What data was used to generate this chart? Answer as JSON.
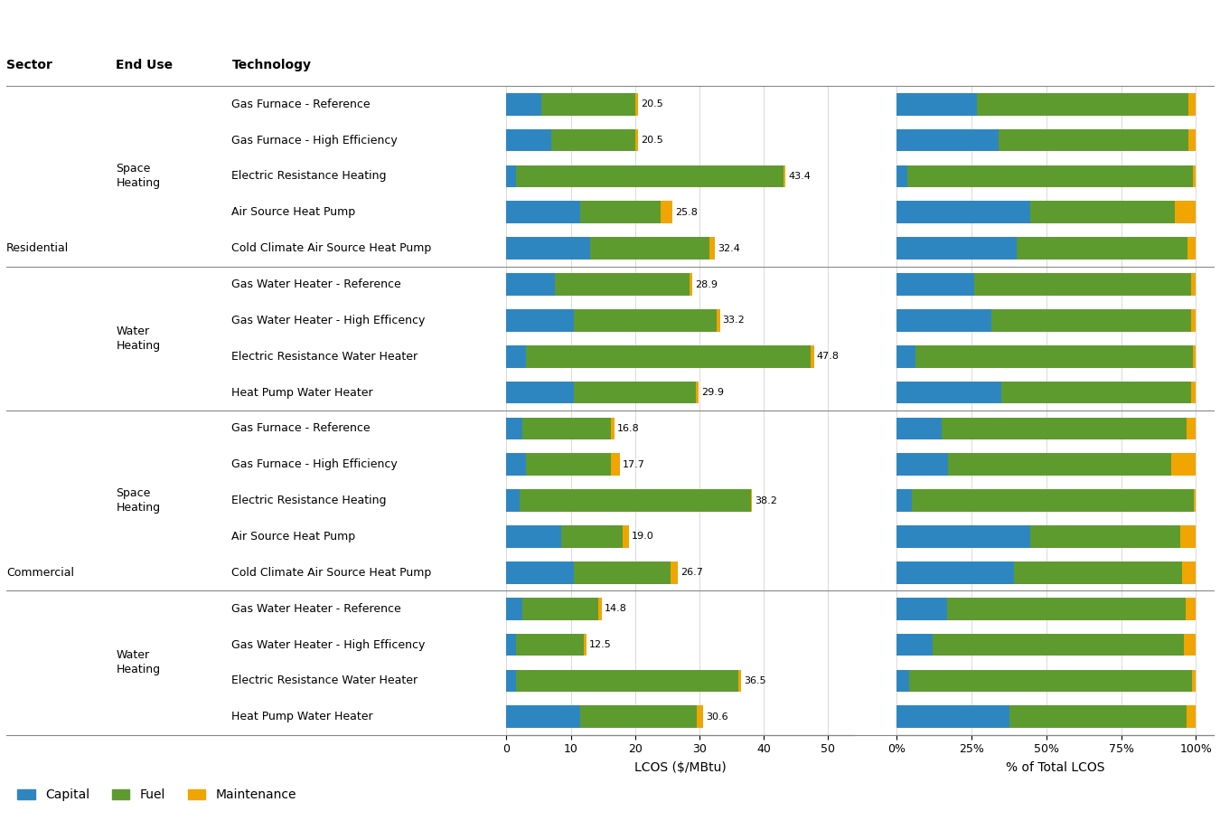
{
  "technologies": [
    "Gas Furnace - Reference",
    "Gas Furnace - High Efficiency",
    "Electric Resistance Heating",
    "Air Source Heat Pump",
    "Cold Climate Air Source Heat Pump",
    "Gas Water Heater - Reference",
    "Gas Water Heater - High Efficency",
    "Electric Resistance Water Heater",
    "Heat Pump Water Heater",
    "Gas Furnace - Reference",
    "Gas Furnace - High Efficiency",
    "Electric Resistance Heating",
    "Air Source Heat Pump",
    "Cold Climate Air Source Heat Pump",
    "Gas Water Heater - Reference",
    "Gas Water Heater - High Efficency",
    "Electric Resistance Water Heater",
    "Heat Pump Water Heater"
  ],
  "capital": [
    5.5,
    7.0,
    1.5,
    11.5,
    13.0,
    7.5,
    10.5,
    3.0,
    10.5,
    2.5,
    3.0,
    2.0,
    8.5,
    10.5,
    2.5,
    1.5,
    1.5,
    11.5
  ],
  "fuel": [
    14.5,
    13.0,
    41.5,
    12.5,
    18.5,
    20.9,
    22.2,
    44.3,
    18.9,
    13.8,
    13.2,
    36.0,
    9.5,
    15.0,
    11.8,
    10.5,
    34.5,
    18.1
  ],
  "maintenance": [
    0.5,
    0.5,
    0.4,
    1.8,
    0.9,
    0.5,
    0.5,
    0.5,
    0.5,
    0.5,
    1.5,
    0.2,
    1.0,
    1.2,
    0.5,
    0.5,
    0.5,
    1.0
  ],
  "totals": [
    20.5,
    20.5,
    43.4,
    25.8,
    32.4,
    28.9,
    33.2,
    47.8,
    29.9,
    16.8,
    17.7,
    38.2,
    19.0,
    26.7,
    14.8,
    12.5,
    36.5,
    30.6
  ],
  "capital_pct": [
    26.8,
    34.1,
    3.5,
    44.6,
    40.1,
    26.0,
    31.6,
    6.3,
    35.1,
    14.9,
    17.0,
    5.2,
    44.7,
    39.3,
    16.9,
    12.0,
    4.1,
    37.6
  ],
  "fuel_pct": [
    70.7,
    63.4,
    95.6,
    48.4,
    57.1,
    72.3,
    66.9,
    92.7,
    63.2,
    82.1,
    74.6,
    94.2,
    50.0,
    56.2,
    79.7,
    84.0,
    94.5,
    59.2
  ],
  "maintenance_pct": [
    2.5,
    2.5,
    0.9,
    7.0,
    2.8,
    1.7,
    1.5,
    1.0,
    1.7,
    3.0,
    8.4,
    0.6,
    5.3,
    4.5,
    3.4,
    4.0,
    1.4,
    3.2
  ],
  "color_capital": "#2E86C1",
  "color_fuel": "#5D9B2F",
  "color_maintenance": "#F0A500",
  "sector_groups": [
    {
      "label": "Residential",
      "rows": [
        0,
        8
      ]
    },
    {
      "label": "Commercial",
      "rows": [
        9,
        17
      ]
    }
  ],
  "enduse_groups": [
    {
      "label": "Space\nHeating",
      "rows": [
        0,
        4
      ]
    },
    {
      "label": "Water\nHeating",
      "rows": [
        5,
        8
      ]
    },
    {
      "label": "Space\nHeating",
      "rows": [
        9,
        13
      ]
    },
    {
      "label": "Water\nHeating",
      "rows": [
        14,
        17
      ]
    }
  ],
  "separator_after_row": [
    4,
    8,
    13
  ]
}
